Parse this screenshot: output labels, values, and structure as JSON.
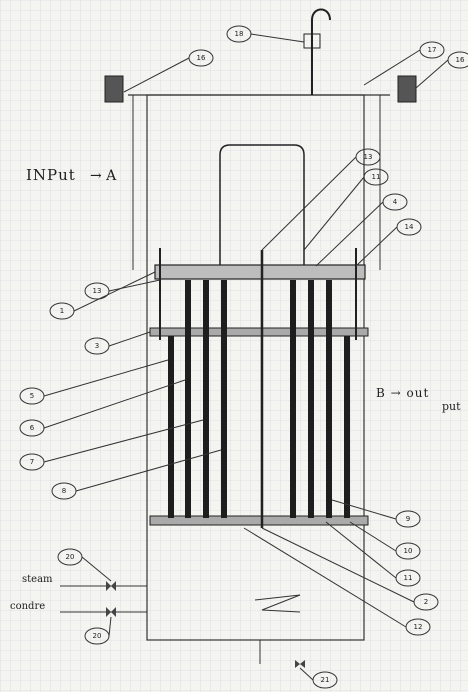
{
  "annotations": {
    "input": "INPut",
    "input_arrow": "→ A",
    "output_line1": "B → out",
    "output_line2": "put",
    "steam": "steam",
    "condensate": "condre"
  },
  "callouts": [
    "18",
    "16",
    "17",
    "16",
    "13",
    "11",
    "4",
    "14",
    "1",
    "13",
    "3",
    "5",
    "6",
    "7",
    "8",
    "9",
    "10",
    "11",
    "2",
    "12",
    "20",
    "20",
    "21"
  ]
}
